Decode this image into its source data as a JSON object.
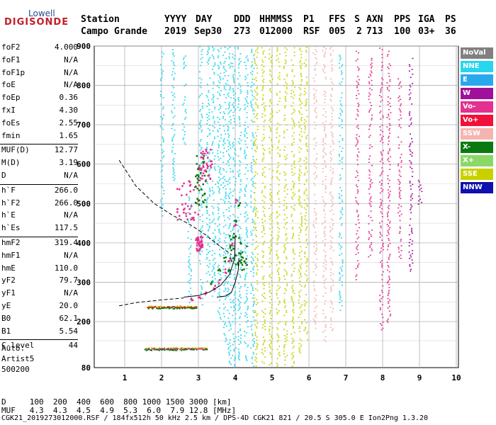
{
  "logo": {
    "line1": "Lowell",
    "line2": "DIGISONDE"
  },
  "header": {
    "labels": [
      "Station",
      "YYYY",
      "DAY",
      "DDD",
      "HHMMSS",
      "P1",
      "FFS",
      "S",
      "AXN",
      "PPS",
      "IGA",
      "PS"
    ],
    "values": [
      "Campo Grande",
      "2019",
      "Sep30",
      "273",
      "012000",
      "RSF",
      "005",
      "2",
      "713",
      "100",
      "03+",
      "36"
    ]
  },
  "params": [
    {
      "k": "foF2",
      "v": "4.000"
    },
    {
      "k": "foF1",
      "v": "N/A"
    },
    {
      "k": "foF1p",
      "v": "N/A"
    },
    {
      "k": "foE",
      "v": "N/A"
    },
    {
      "k": "foEp",
      "v": "0.36"
    },
    {
      "k": "fxI",
      "v": "4.30"
    },
    {
      "k": "foEs",
      "v": "2.55"
    },
    {
      "k": "fmin",
      "v": "1.65"
    },
    {
      "k": "MUF(D)",
      "v": "12.77"
    },
    {
      "k": "M(D)",
      "v": "3.19"
    },
    {
      "k": "D",
      "v": "N/A"
    },
    {
      "k": "h`F",
      "v": "266.0"
    },
    {
      "k": "h`F2",
      "v": "266.0"
    },
    {
      "k": "h`E",
      "v": "N/A"
    },
    {
      "k": "h`Es",
      "v": "117.5"
    },
    {
      "k": "hmF2",
      "v": "319.4"
    },
    {
      "k": "hmF1",
      "v": "N/A"
    },
    {
      "k": "hmE",
      "v": "110.0"
    },
    {
      "k": "yF2",
      "v": "79.7"
    },
    {
      "k": "yF1",
      "v": "N/A"
    },
    {
      "k": "yE",
      "v": "20.0"
    },
    {
      "k": "B0",
      "v": "62.1"
    },
    {
      "k": "B1",
      "v": "5.54"
    },
    {
      "k": "C-level",
      "v": "44"
    }
  ],
  "autoscale": {
    "line1": "Auto:",
    "line2": "Artist5",
    "line3": "500200"
  },
  "legend": [
    {
      "label": "NoVal",
      "color": "#808080",
      "text": "#ffffff"
    },
    {
      "label": "NNE",
      "color": "#27d5ee",
      "text": "#ffffff"
    },
    {
      "label": "E",
      "color": "#2aa8ee",
      "text": "#ffffff"
    },
    {
      "label": "W",
      "color": "#a0109a",
      "text": "#ffffff"
    },
    {
      "label": "Vo-",
      "color": "#e4308e",
      "text": "#ffffff"
    },
    {
      "label": "Vo+",
      "color": "#f0103a",
      "text": "#ffffff"
    },
    {
      "label": "SSW",
      "color": "#f4b4b0",
      "text": "#ffffff"
    },
    {
      "label": "X-",
      "color": "#0a7a10",
      "text": "#ffffff"
    },
    {
      "label": "X+",
      "color": "#8ad868",
      "text": "#ffffff"
    },
    {
      "label": "SSE",
      "color": "#c8d000",
      "text": "#ffffff"
    },
    {
      "label": "NNW",
      "color": "#1010b0",
      "text": "#ffffff"
    }
  ],
  "footer": {
    "d_label": "D",
    "muf_label": "MUF",
    "d_values": [
      "100",
      "200",
      "400",
      "600",
      "800",
      "1000",
      "1500",
      "3000"
    ],
    "d_unit": "[km]",
    "muf_values": [
      "4.3",
      "4.3",
      "4.5",
      "4.9",
      "5.3",
      "6.0",
      "7.9",
      "12.8"
    ],
    "muf_unit": "[MHz]",
    "info": "CGK21_2019273012000.RSF / 184fx512h 50 kHz 2.5 km / DPS-4D CGK21 821 / 20.5 S 305.0 E Ion2Png 1.3.20"
  },
  "chart_data": {
    "type": "scatter",
    "x_ticks": [
      "1",
      "2",
      "3",
      "4",
      "5",
      "6",
      "7",
      "8",
      "9",
      "10"
    ],
    "y_ticks": [
      "200",
      "300",
      "400",
      "500",
      "600",
      "700",
      "800",
      "900"
    ],
    "y_bottom_tick": "80",
    "xlim": [
      0.85,
      10.0
    ],
    "ylim": [
      80,
      900
    ],
    "grid": true,
    "echo_columns": [
      {
        "x": 2.0,
        "y": [
          470,
          890
        ],
        "color": "#27d5ee"
      },
      {
        "x": 2.3,
        "y": [
          560,
          900
        ],
        "color": "#27d5ee"
      },
      {
        "x": 2.6,
        "y": [
          640,
          880
        ],
        "color": "#27d5ee"
      },
      {
        "x": 2.75,
        "y": [
          250,
          520
        ],
        "color": "#27d5ee"
      },
      {
        "x": 3.05,
        "y": [
          240,
          900
        ],
        "color": "#27d5ee"
      },
      {
        "x": 3.25,
        "y": [
          300,
          900
        ],
        "color": "#27d5ee"
      },
      {
        "x": 3.4,
        "y": [
          250,
          900
        ],
        "color": "#27d5ee"
      },
      {
        "x": 3.55,
        "y": [
          200,
          900
        ],
        "color": "#27d5ee"
      },
      {
        "x": 3.7,
        "y": [
          150,
          900
        ],
        "color": "#27d5ee"
      },
      {
        "x": 3.82,
        "y": [
          90,
          900
        ],
        "color": "#27d5ee"
      },
      {
        "x": 3.95,
        "y": [
          85,
          900
        ],
        "color": "#27d5ee"
      },
      {
        "x": 4.1,
        "y": [
          90,
          900
        ],
        "color": "#27d5ee"
      },
      {
        "x": 4.28,
        "y": [
          100,
          880
        ],
        "color": "#27d5ee"
      },
      {
        "x": 4.45,
        "y": [
          85,
          900
        ],
        "color": "#27d5ee"
      },
      {
        "x": 4.55,
        "y": [
          85,
          900
        ],
        "color": "#c8d000"
      },
      {
        "x": 4.75,
        "y": [
          85,
          900
        ],
        "color": "#c8d000"
      },
      {
        "x": 4.95,
        "y": [
          85,
          900
        ],
        "color": "#c8d000"
      },
      {
        "x": 5.15,
        "y": [
          85,
          900
        ],
        "color": "#c8d000"
      },
      {
        "x": 5.35,
        "y": [
          85,
          900
        ],
        "color": "#c8d000"
      },
      {
        "x": 5.55,
        "y": [
          85,
          900
        ],
        "color": "#c8d000"
      },
      {
        "x": 5.75,
        "y": [
          120,
          900
        ],
        "color": "#c8d000"
      },
      {
        "x": 5.9,
        "y": [
          150,
          900
        ],
        "color": "#c8d000"
      },
      {
        "x": 6.15,
        "y": [
          180,
          900
        ],
        "color": "#f4b4b0"
      },
      {
        "x": 6.4,
        "y": [
          150,
          900
        ],
        "color": "#f4b4b0"
      },
      {
        "x": 6.6,
        "y": [
          170,
          900
        ],
        "color": "#f4b4b0"
      },
      {
        "x": 6.85,
        "y": [
          230,
          880
        ],
        "color": "#27d5ee"
      },
      {
        "x": 7.3,
        "y": [
          300,
          890
        ],
        "color": "#e4308e"
      },
      {
        "x": 7.65,
        "y": [
          350,
          880
        ],
        "color": "#e4308e"
      },
      {
        "x": 7.95,
        "y": [
          180,
          900
        ],
        "color": "#e4308e"
      },
      {
        "x": 8.15,
        "y": [
          200,
          890
        ],
        "color": "#e4308e"
      },
      {
        "x": 8.45,
        "y": [
          350,
          820
        ],
        "color": "#e4308e"
      },
      {
        "x": 8.75,
        "y": [
          330,
          880
        ],
        "color": "#a0109a"
      },
      {
        "x": 9.0,
        "y": [
          500,
          560
        ],
        "color": "#a0109a"
      }
    ],
    "es_traces": [
      {
        "x": [
          1.5,
          3.25
        ],
        "y": 132,
        "color": "#c8d000"
      },
      {
        "x": [
          1.5,
          3.25
        ],
        "y": 130,
        "color": "#e4308e"
      },
      {
        "x": [
          1.5,
          3.25
        ],
        "y": 128,
        "color": "#0a7a10"
      },
      {
        "x": [
          1.6,
          2.95
        ],
        "y": 240,
        "color": "#c8d000"
      },
      {
        "x": [
          1.6,
          2.95
        ],
        "y": 238,
        "color": "#f0103a"
      },
      {
        "x": [
          1.6,
          2.95
        ],
        "y": 236,
        "color": "#0a7a10"
      }
    ],
    "o_trace": [
      [
        2.8,
        258
      ],
      [
        3.0,
        263
      ],
      [
        3.2,
        272
      ],
      [
        3.4,
        288
      ],
      [
        3.55,
        305
      ],
      [
        3.7,
        330
      ],
      [
        3.82,
        360
      ],
      [
        3.92,
        400
      ],
      [
        3.98,
        450
      ],
      [
        4.0,
        510
      ]
    ],
    "x_trace": [
      [
        3.35,
        300
      ],
      [
        3.55,
        330
      ],
      [
        3.7,
        360
      ],
      [
        3.82,
        390
      ],
      [
        3.92,
        420
      ],
      [
        4.0,
        460
      ],
      [
        4.1,
        500
      ]
    ],
    "profile_solid": [
      [
        2.6,
        262
      ],
      [
        3.0,
        266
      ],
      [
        3.3,
        275
      ],
      [
        3.6,
        292
      ],
      [
        3.85,
        320
      ],
      [
        3.98,
        360
      ],
      [
        4.0,
        420
      ]
    ],
    "profile_solid2": [
      [
        3.5,
        262
      ],
      [
        3.75,
        265
      ],
      [
        3.9,
        275
      ],
      [
        4.0,
        300
      ],
      [
        4.08,
        330
      ],
      [
        4.1,
        360
      ]
    ],
    "profile_dashed_low": [
      [
        0.85,
        240
      ],
      [
        1.3,
        248
      ],
      [
        2.0,
        255
      ],
      [
        2.6,
        260
      ]
    ],
    "profile_dashed_high": [
      [
        0.85,
        610
      ],
      [
        1.3,
        545
      ],
      [
        1.8,
        500
      ],
      [
        2.3,
        470
      ],
      [
        2.8,
        445
      ],
      [
        3.2,
        420
      ],
      [
        3.6,
        390
      ],
      [
        3.9,
        370
      ]
    ],
    "spread_f_cluster": [
      {
        "x": [
          2.4,
          3.0
        ],
        "y": [
          460,
          560
        ],
        "color": "#e4308e"
      },
      {
        "x": [
          2.9,
          3.2
        ],
        "y": [
          490,
          630
        ],
        "color": "#0a7a10"
      },
      {
        "x": [
          3.0,
          3.35
        ],
        "y": [
          560,
          640
        ],
        "color": "#e4308e"
      },
      {
        "x": [
          2.9,
          3.1
        ],
        "y": [
          380,
          420
        ],
        "color": "#e4308e"
      },
      {
        "x": [
          3.8,
          4.3
        ],
        "y": [
          330,
          420
        ],
        "color": "#0a7a10"
      }
    ]
  }
}
